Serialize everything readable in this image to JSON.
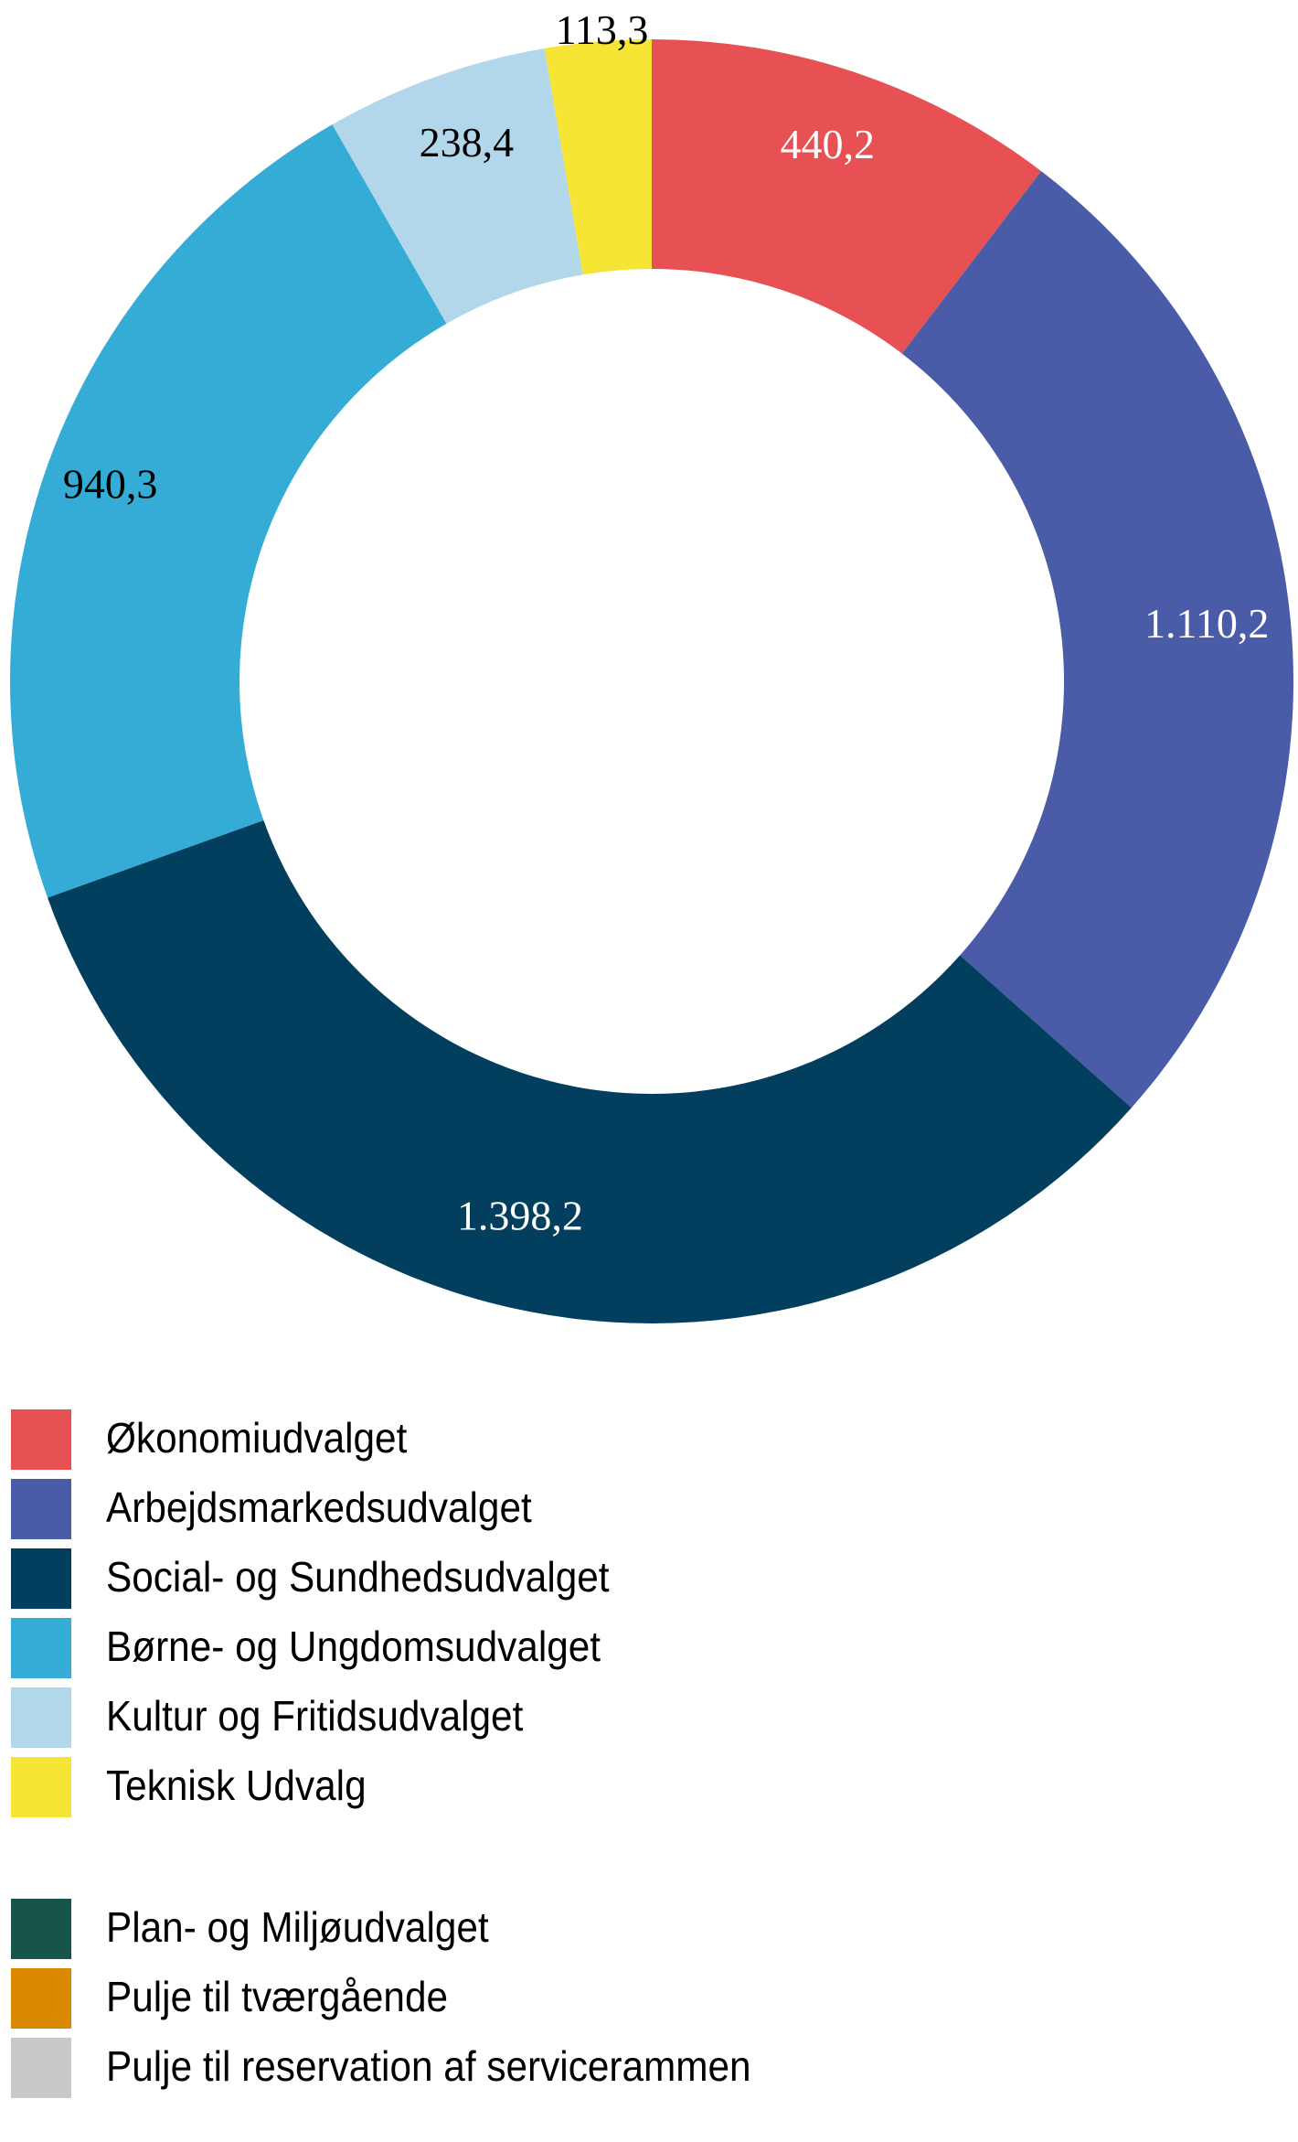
{
  "chart_data": {
    "type": "donut",
    "slices": [
      {
        "name": "Økonomiudvalget",
        "value": 440.2,
        "label": "440,2",
        "color": "#e85154",
        "label_color": "#ffffff"
      },
      {
        "name": "Arbejdsmarkedsudvalget",
        "value": 1110.2,
        "label": "1.110,2",
        "color": "#4a5ba8",
        "label_color": "#ffffff"
      },
      {
        "name": "Social- og Sundhedsudvalget",
        "value": 1398.2,
        "label": "1.398,2",
        "color": "#023f5e",
        "label_color": "#ffffff"
      },
      {
        "name": "Børne- og Ungdomsudvalget",
        "value": 940.3,
        "label": "940,3",
        "color": "#35acd6",
        "label_color": "#000000"
      },
      {
        "name": "Kultur og Fritidsudvalget",
        "value": 238.4,
        "label": "238,4",
        "color": "#b2d7eb",
        "label_color": "#000000"
      },
      {
        "name": "Teknisk Udvalg",
        "value": 113.3,
        "label": "113,3",
        "color": "#f6e534",
        "label_color": "#000000"
      }
    ],
    "legend": [
      {
        "name": "Økonomiudvalget",
        "color": "#e85154"
      },
      {
        "name": "Arbejdsmarkedsudvalget",
        "color": "#4a5ba8"
      },
      {
        "name": "Social- og Sundhedsudvalget",
        "color": "#023f5e"
      },
      {
        "name": "Børne- og Ungdomsudvalget",
        "color": "#35acd6"
      },
      {
        "name": "Kultur og Fritidsudvalget",
        "color": "#b2d7eb"
      },
      {
        "name": "Teknisk Udvalg",
        "color": "#f6e534"
      },
      {
        "name": "Plan- og Miljøudvalget",
        "color": "#17554a"
      },
      {
        "name": "Pulje til tværgående",
        "color": "#d98800"
      },
      {
        "name": "Pulje til reservation af servicerammen",
        "color": "#cbc8c8"
      }
    ],
    "legend_placement": "bottom-left"
  }
}
